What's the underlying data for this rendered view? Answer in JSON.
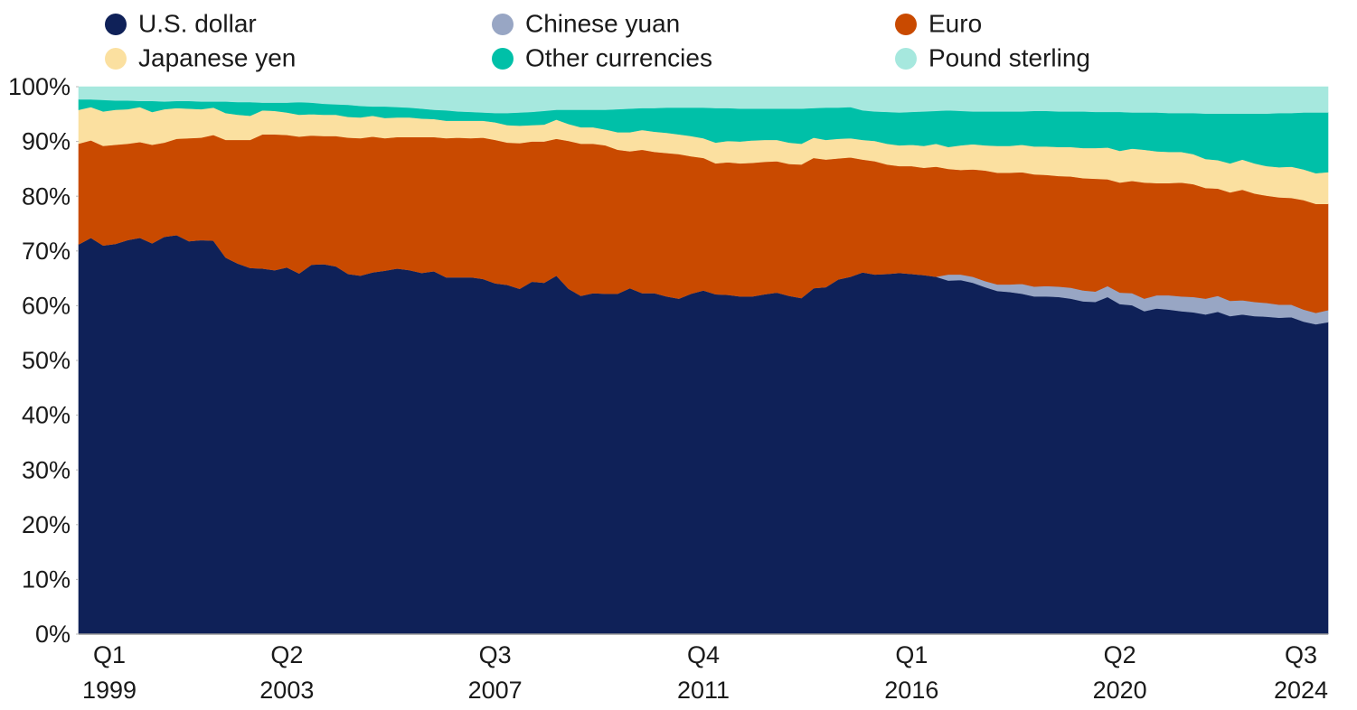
{
  "chart_data": {
    "type": "area",
    "stacked": true,
    "legend": "top",
    "categories": [
      "Q1 1999",
      null,
      null,
      null,
      null,
      null,
      null,
      null,
      null,
      null,
      null,
      null,
      null,
      null,
      null,
      null,
      null,
      "Q2 2003",
      null,
      null,
      null,
      null,
      null,
      null,
      null,
      null,
      null,
      null,
      null,
      null,
      null,
      null,
      null,
      null,
      "Q3 2007",
      null,
      null,
      null,
      null,
      null,
      null,
      null,
      null,
      null,
      null,
      null,
      null,
      null,
      null,
      null,
      null,
      "Q4 2011",
      null,
      null,
      null,
      null,
      null,
      null,
      null,
      null,
      null,
      null,
      null,
      null,
      null,
      null,
      null,
      null,
      "Q1 2016",
      null,
      null,
      null,
      null,
      null,
      null,
      null,
      null,
      null,
      null,
      null,
      null,
      null,
      null,
      null,
      null,
      "Q2 2020",
      null,
      null,
      null,
      null,
      null,
      null,
      null,
      null,
      null,
      null,
      null,
      null,
      null,
      null,
      null,
      null,
      "Q3 2024"
    ],
    "ylim": [
      0,
      100
    ],
    "yticks": [
      {
        "value": 0,
        "label": "0%"
      },
      {
        "value": 10,
        "label": "10%"
      },
      {
        "value": 20,
        "label": "20%"
      },
      {
        "value": 30,
        "label": "30%"
      },
      {
        "value": 40,
        "label": "40%"
      },
      {
        "value": 50,
        "label": "50%"
      },
      {
        "value": 60,
        "label": "60%"
      },
      {
        "value": 70,
        "label": "70%"
      },
      {
        "value": 80,
        "label": "80%"
      },
      {
        "value": 90,
        "label": "90%"
      },
      {
        "value": 100,
        "label": "100%"
      }
    ],
    "series": [
      {
        "name": "U.S. dollar",
        "color": "#0f2158",
        "values": [
          71.2,
          72.4,
          71.0,
          71.3,
          72.0,
          72.4,
          71.4,
          72.6,
          72.9,
          71.8,
          72.0,
          71.9,
          68.8,
          67.7,
          66.9,
          66.8,
          66.5,
          67.0,
          65.9,
          67.5,
          67.6,
          67.2,
          65.8,
          65.5,
          66.1,
          66.4,
          66.8,
          66.5,
          66.0,
          66.3,
          65.2,
          65.2,
          65.2,
          64.9,
          64.1,
          63.8,
          63.1,
          64.4,
          64.2,
          65.5,
          63.1,
          61.8,
          62.3,
          62.2,
          62.2,
          63.2,
          62.3,
          62.3,
          61.7,
          61.3,
          62.2,
          62.8,
          62.1,
          62.0,
          61.7,
          61.7,
          62.1,
          62.4,
          61.8,
          61.4,
          63.2,
          63.4,
          64.8,
          65.3,
          66.1,
          65.7,
          65.8,
          66.0,
          65.8,
          65.6,
          65.3,
          64.6,
          64.7,
          64.2,
          63.4,
          62.7,
          62.5,
          62.2,
          61.7,
          61.7,
          61.6,
          61.3,
          60.8,
          60.7,
          61.6,
          60.3,
          60.1,
          59.0,
          59.5,
          59.3,
          59.0,
          58.8,
          58.4,
          58.9,
          58.1,
          58.4,
          58.1,
          58.0,
          57.8,
          57.9,
          57.1,
          56.6,
          57.0
        ]
      },
      {
        "name": "Chinese yuan",
        "color": "#98a6c4",
        "values": [
          0,
          0,
          0,
          0,
          0,
          0,
          0,
          0,
          0,
          0,
          0,
          0,
          0,
          0,
          0,
          0,
          0,
          0,
          0,
          0,
          0,
          0,
          0,
          0,
          0,
          0,
          0,
          0,
          0,
          0,
          0,
          0,
          0,
          0,
          0,
          0,
          0,
          0,
          0,
          0,
          0,
          0,
          0,
          0,
          0,
          0,
          0,
          0,
          0,
          0,
          0,
          0,
          0,
          0,
          0,
          0,
          0,
          0,
          0,
          0,
          0,
          0,
          0,
          0,
          0,
          0,
          0,
          0,
          0,
          0,
          0,
          1.1,
          1.0,
          1.1,
          1.1,
          1.2,
          1.4,
          1.8,
          1.8,
          1.9,
          1.9,
          2.0,
          2.0,
          1.9,
          2.0,
          2.1,
          2.2,
          2.3,
          2.4,
          2.6,
          2.7,
          2.8,
          2.9,
          2.9,
          2.8,
          2.6,
          2.6,
          2.5,
          2.4,
          2.3,
          2.2,
          2.1,
          2.2
        ]
      },
      {
        "name": "Euro",
        "color": "#c94a00",
        "values": [
          18.4,
          17.8,
          18.2,
          18.1,
          17.6,
          17.5,
          18.0,
          17.2,
          17.6,
          18.8,
          18.7,
          19.3,
          21.5,
          22.6,
          23.4,
          24.5,
          24.8,
          24.2,
          25.0,
          23.6,
          23.4,
          23.8,
          24.9,
          25.1,
          24.8,
          24.2,
          24.0,
          24.3,
          24.8,
          24.5,
          25.4,
          25.5,
          25.4,
          25.8,
          26.2,
          26.0,
          26.6,
          25.6,
          25.8,
          25.0,
          27.0,
          27.8,
          27.3,
          27.1,
          26.3,
          25.0,
          26.2,
          25.8,
          26.2,
          26.4,
          25.1,
          24.2,
          23.9,
          24.2,
          24.3,
          24.4,
          24.2,
          24.0,
          24.1,
          24.4,
          23.8,
          23.3,
          22.1,
          21.8,
          20.6,
          20.7,
          20.0,
          19.5,
          19.7,
          19.6,
          20.1,
          19.3,
          19.1,
          19.6,
          20.2,
          20.4,
          20.4,
          20.4,
          20.5,
          20.3,
          20.2,
          20.3,
          20.5,
          20.6,
          19.5,
          20.1,
          20.5,
          21.2,
          20.5,
          20.5,
          20.8,
          20.6,
          20.2,
          19.6,
          19.8,
          20.2,
          19.8,
          19.6,
          19.6,
          19.5,
          20.0,
          19.9,
          19.4
        ]
      },
      {
        "name": "Japanese yen",
        "color": "#fbe0a0",
        "values": [
          6.2,
          6.1,
          6.3,
          6.4,
          6.3,
          6.4,
          6.0,
          6.1,
          5.6,
          5.4,
          5.2,
          5.0,
          4.9,
          4.6,
          4.4,
          4.4,
          4.3,
          4.1,
          4.0,
          3.9,
          3.9,
          3.9,
          3.8,
          3.8,
          3.8,
          3.7,
          3.6,
          3.6,
          3.4,
          3.3,
          3.2,
          3.1,
          3.2,
          3.1,
          3.2,
          3.2,
          3.2,
          3.0,
          3.1,
          3.5,
          3.1,
          3.0,
          3.0,
          2.9,
          3.2,
          3.5,
          3.6,
          3.7,
          3.7,
          3.6,
          3.7,
          3.6,
          3.8,
          3.9,
          4.0,
          4.1,
          4.0,
          3.9,
          3.9,
          3.8,
          3.7,
          3.6,
          3.6,
          3.5,
          3.6,
          3.7,
          3.8,
          3.8,
          3.9,
          4.0,
          4.2,
          4.0,
          4.5,
          4.6,
          4.6,
          4.9,
          4.9,
          5.0,
          5.1,
          5.2,
          5.3,
          5.4,
          5.5,
          5.6,
          5.8,
          5.8,
          5.9,
          6.0,
          5.8,
          5.7,
          5.6,
          5.5,
          5.3,
          5.2,
          5.3,
          5.5,
          5.5,
          5.4,
          5.5,
          5.7,
          5.6,
          5.6,
          5.8
        ]
      },
      {
        "name": "Other currencies",
        "color": "#00c0a8",
        "values": [
          1.9,
          1.4,
          2.1,
          1.7,
          1.6,
          1.1,
          2.0,
          1.4,
          1.3,
          1.4,
          1.4,
          1.1,
          2.1,
          2.3,
          2.5,
          1.4,
          1.5,
          1.8,
          2.3,
          2.1,
          2.0,
          1.9,
          2.2,
          2.1,
          1.7,
          2.1,
          1.9,
          1.8,
          1.8,
          1.7,
          1.9,
          1.7,
          1.6,
          1.5,
          1.7,
          2.2,
          2.4,
          2.4,
          2.5,
          1.8,
          2.6,
          3.2,
          3.2,
          3.6,
          4.2,
          4.3,
          4.0,
          4.3,
          4.6,
          4.9,
          5.2,
          5.6,
          6.3,
          6.0,
          6.0,
          5.8,
          5.7,
          5.7,
          6.2,
          6.4,
          5.4,
          5.9,
          5.7,
          5.7,
          5.4,
          5.4,
          5.8,
          6.0,
          6.0,
          6.3,
          6.0,
          6.7,
          6.3,
          6.0,
          6.2,
          6.3,
          6.3,
          6.1,
          6.5,
          6.5,
          6.5,
          6.5,
          6.7,
          6.6,
          6.5,
          7.1,
          6.6,
          6.8,
          7.1,
          7.1,
          7.1,
          7.5,
          8.3,
          8.5,
          9.1,
          8.4,
          9.1,
          9.6,
          9.9,
          9.8,
          10.4,
          11.1,
          10.9
        ]
      },
      {
        "name": "Pound sterling",
        "color": "#a6e8de",
        "values": [
          2.3,
          2.3,
          2.4,
          2.5,
          2.5,
          2.6,
          2.6,
          2.7,
          2.6,
          2.6,
          2.7,
          2.7,
          2.7,
          2.8,
          2.8,
          2.9,
          2.9,
          2.9,
          2.8,
          2.9,
          3.1,
          3.2,
          3.3,
          3.5,
          3.6,
          3.6,
          3.7,
          3.8,
          4.0,
          4.2,
          4.3,
          4.5,
          4.6,
          4.7,
          4.8,
          4.8,
          4.7,
          4.6,
          4.4,
          4.2,
          4.2,
          4.2,
          4.2,
          4.2,
          4.1,
          4.0,
          3.9,
          3.9,
          3.8,
          3.8,
          3.8,
          3.8,
          3.9,
          3.9,
          4.0,
          4.0,
          4.0,
          4.0,
          4.0,
          4.0,
          3.9,
          3.8,
          3.8,
          3.7,
          4.3,
          4.5,
          4.6,
          4.7,
          4.6,
          4.5,
          4.4,
          4.3,
          4.4,
          4.5,
          4.5,
          4.5,
          4.5,
          4.5,
          4.4,
          4.4,
          4.5,
          4.5,
          4.5,
          4.6,
          4.6,
          4.6,
          4.7,
          4.7,
          4.7,
          4.8,
          4.8,
          4.8,
          4.9,
          4.9,
          4.9,
          4.9,
          4.9,
          4.9,
          4.8,
          4.8,
          4.7,
          4.7,
          4.7
        ]
      }
    ]
  }
}
